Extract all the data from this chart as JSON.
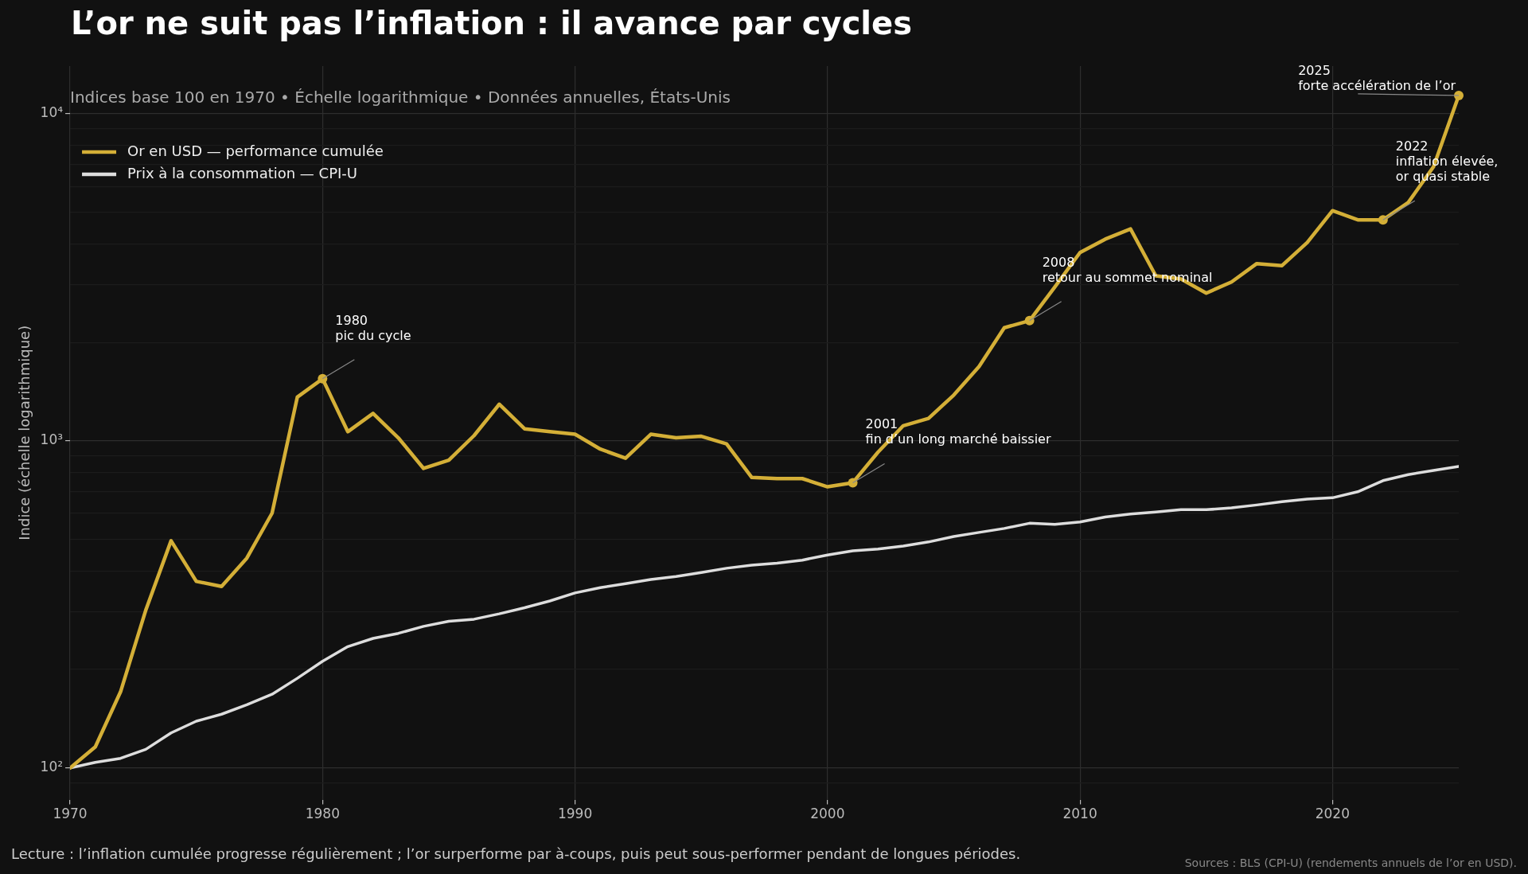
{
  "chart_data": {
    "type": "line",
    "title": "L’or ne suit pas l’inflation : il avance par cycles",
    "subtitle": "Indices base 100 en 1970 • Échelle logarithmique • Données annuelles, États-Unis",
    "ylabel": "Indice (échelle logarithmique)",
    "x": [
      1970,
      1971,
      1972,
      1973,
      1974,
      1975,
      1976,
      1977,
      1978,
      1979,
      1980,
      1981,
      1982,
      1983,
      1984,
      1985,
      1986,
      1987,
      1988,
      1989,
      1990,
      1991,
      1992,
      1993,
      1994,
      1995,
      1996,
      1997,
      1998,
      1999,
      2000,
      2001,
      2002,
      2003,
      2004,
      2005,
      2006,
      2007,
      2008,
      2009,
      2010,
      2011,
      2012,
      2013,
      2014,
      2015,
      2016,
      2017,
      2018,
      2019,
      2020,
      2021,
      2022,
      2023,
      2024,
      2025
    ],
    "series": [
      {
        "name": "Or en USD — performance cumulée",
        "color": "#d4af37",
        "values": [
          100,
          116,
          171,
          304,
          495,
          372,
          359,
          438,
          601,
          1361,
          1549,
          1067,
          1214,
          1022,
          824,
          873,
          1038,
          1295,
          1089,
          1067,
          1048,
          944,
          885,
          1048,
          1022,
          1033,
          979,
          773,
          767,
          767,
          724,
          745,
          924,
          1113,
          1172,
          1381,
          1688,
          2218,
          2332,
          2953,
          3767,
          4140,
          4446,
          3197,
          3127,
          2831,
          3062,
          3485,
          3436,
          4045,
          5057,
          4742,
          4742,
          5358,
          6888,
          11380
        ]
      },
      {
        "name": "Prix à la consommation — CPI-U",
        "color": "#dddddd",
        "values": [
          100,
          104,
          107,
          114,
          128,
          139,
          146,
          156,
          168,
          188,
          212,
          235,
          249,
          258,
          271,
          281,
          285,
          296,
          309,
          324,
          343,
          356,
          366,
          377,
          385,
          396,
          408,
          417,
          423,
          432,
          448,
          461,
          467,
          477,
          491,
          510,
          525,
          540,
          560,
          556,
          565,
          585,
          598,
          606,
          616,
          616,
          624,
          637,
          652,
          664,
          670,
          699,
          756,
          789,
          812,
          836
        ]
      }
    ],
    "log": true,
    "xlim": [
      1970,
      2025
    ],
    "xticks": [
      1970,
      1980,
      1990,
      2000,
      2010,
      2020
    ],
    "ylim": [
      80,
      14000
    ],
    "yticks": [
      {
        "value": 90,
        "label": null
      },
      {
        "value": 100,
        "label": "10²"
      },
      {
        "value": 200,
        "label": null
      },
      {
        "value": 300,
        "label": null
      },
      {
        "value": 400,
        "label": null
      },
      {
        "value": 500,
        "label": null
      },
      {
        "value": 600,
        "label": null
      },
      {
        "value": 700,
        "label": null
      },
      {
        "value": 800,
        "label": null
      },
      {
        "value": 900,
        "label": null
      },
      {
        "value": 1000,
        "label": "10³"
      },
      {
        "value": 2000,
        "label": null
      },
      {
        "value": 3000,
        "label": null
      },
      {
        "value": 4000,
        "label": null
      },
      {
        "value": 5000,
        "label": null
      },
      {
        "value": 6000,
        "label": null
      },
      {
        "value": 7000,
        "label": null
      },
      {
        "value": 8000,
        "label": null
      },
      {
        "value": 9000,
        "label": null
      },
      {
        "value": 10000,
        "label": "10⁴"
      }
    ],
    "grid": true,
    "legend": "top left",
    "annotations": [
      {
        "text": "1980\npic du cycle",
        "x": 1980,
        "y": 1549
      },
      {
        "text": "2001\nfin d’un long marché baissier",
        "x": 2001,
        "y": 745
      },
      {
        "text": "2008\nretour au sommet nominal",
        "x": 2008,
        "y": 2332
      },
      {
        "text": "2022\ninflation élevée,\nor quasi stable",
        "x": 2022,
        "y": 4742
      },
      {
        "text": "2025\nforte accélération de l’or",
        "x": 2025,
        "y": 11380
      },
      "Lecture : l’inflation cumulée progresse régulièrement ; l’or surperforme par à-coups, puis peut sous-performer pendant de longues périodes.",
      "Sources : BLS (CPI-U) (rendements annuels de l’or en USD)."
    ]
  }
}
